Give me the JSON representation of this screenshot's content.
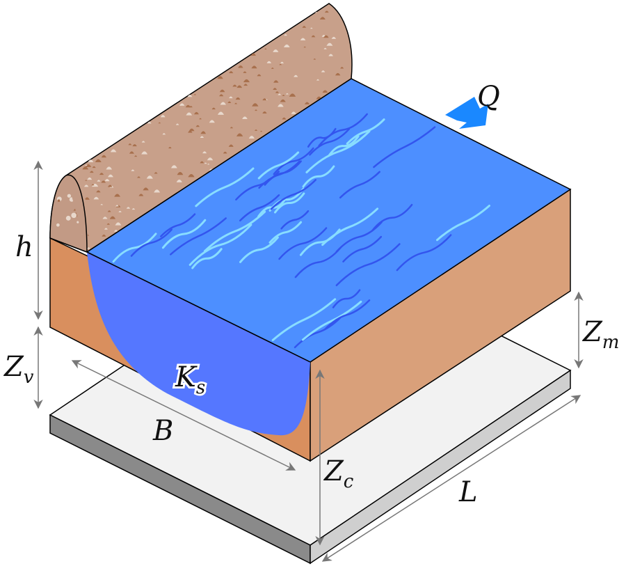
{
  "labels": {
    "Q": "Q",
    "h": "h",
    "Zm_main": "Z",
    "Zm_sub": "m",
    "Zv_main": "Z",
    "Zv_sub": "v",
    "Zc_main": "Z",
    "Zc_sub": "c",
    "Ks_main": "K",
    "Ks_sub": "s",
    "B": "B",
    "L": "L"
  },
  "colors": {
    "water_surface": "#4d8fff",
    "water_section": "#5577ff",
    "ripple_light": "#88ddff",
    "ripple_dark": "#3355ee",
    "soil_front": "#d98f5e",
    "soil_side": "#d9a07a",
    "levee": "#c8a08a",
    "pebbles_dark": "#a8704d",
    "pebbles_light": "#e8d8cc",
    "base_top": "#f2f2f2",
    "base_front": "#8a8a8a",
    "base_side": "#cfcfcf",
    "flow_arrow": "#1a88ff",
    "dimension_lines": "#888888"
  },
  "icons": {
    "flow_arrow": "arrow-left-down"
  }
}
